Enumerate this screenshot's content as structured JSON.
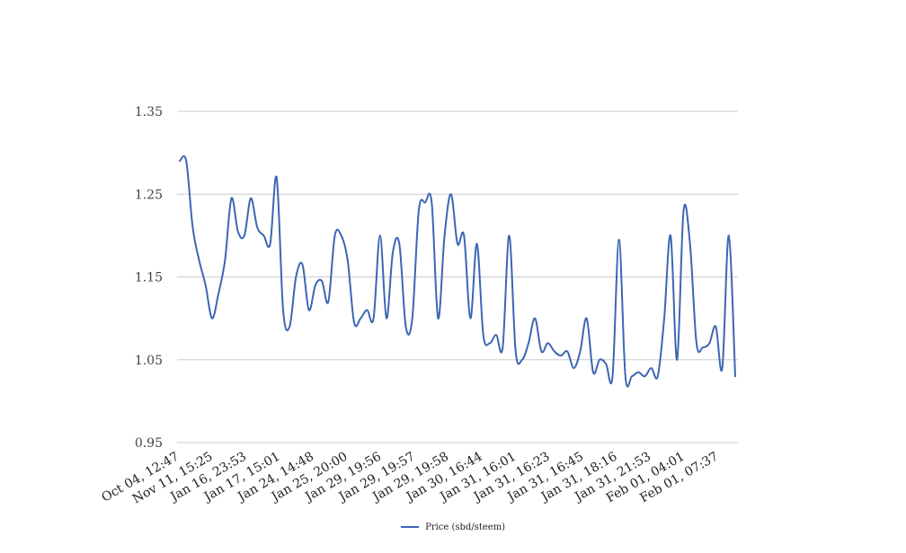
{
  "chart_data": {
    "type": "line",
    "title": "",
    "xlabel": "",
    "ylabel": "",
    "ylim": [
      0.95,
      1.35
    ],
    "y_ticks": [
      "1.35",
      "1.25",
      "1.15",
      "1.05",
      "0.95"
    ],
    "grid": true,
    "legend_position": "bottom",
    "x_tick_labels": [
      "Oct 04, 12:47",
      "Nov 11, 15:25",
      "Jan 16, 23:53",
      "Jan 17, 15:01",
      "Jan 24, 14:48",
      "Jan 25, 20:00",
      "Jan 29, 19:56",
      "Jan 29, 19:57",
      "Jan 29, 19:58",
      "Jan 30, 16:44",
      "Jan 31, 16:01",
      "Jan 31, 16:23",
      "Jan 31, 16:45",
      "Jan 31, 18:16",
      "Jan 31, 21:53",
      "Feb 01, 04:01",
      "Feb 01, 07:37"
    ],
    "series": [
      {
        "name": "Price (sbd/steem)",
        "color": "#3d66b4",
        "values": [
          1.29,
          1.29,
          1.21,
          1.17,
          1.14,
          1.1,
          1.13,
          1.17,
          1.245,
          1.205,
          1.2,
          1.245,
          1.21,
          1.2,
          1.19,
          1.27,
          1.11,
          1.09,
          1.15,
          1.165,
          1.11,
          1.14,
          1.145,
          1.12,
          1.2,
          1.2,
          1.17,
          1.095,
          1.1,
          1.11,
          1.1,
          1.2,
          1.1,
          1.18,
          1.19,
          1.09,
          1.1,
          1.23,
          1.24,
          1.24,
          1.1,
          1.2,
          1.25,
          1.19,
          1.2,
          1.1,
          1.19,
          1.08,
          1.07,
          1.08,
          1.065,
          1.2,
          1.06,
          1.05,
          1.07,
          1.1,
          1.06,
          1.07,
          1.06,
          1.055,
          1.06,
          1.04,
          1.06,
          1.1,
          1.035,
          1.05,
          1.045,
          1.03,
          1.195,
          1.03,
          1.03,
          1.035,
          1.03,
          1.04,
          1.03,
          1.1,
          1.2,
          1.05,
          1.23,
          1.19,
          1.07,
          1.065,
          1.07,
          1.09,
          1.04,
          1.2,
          1.03
        ]
      }
    ]
  }
}
